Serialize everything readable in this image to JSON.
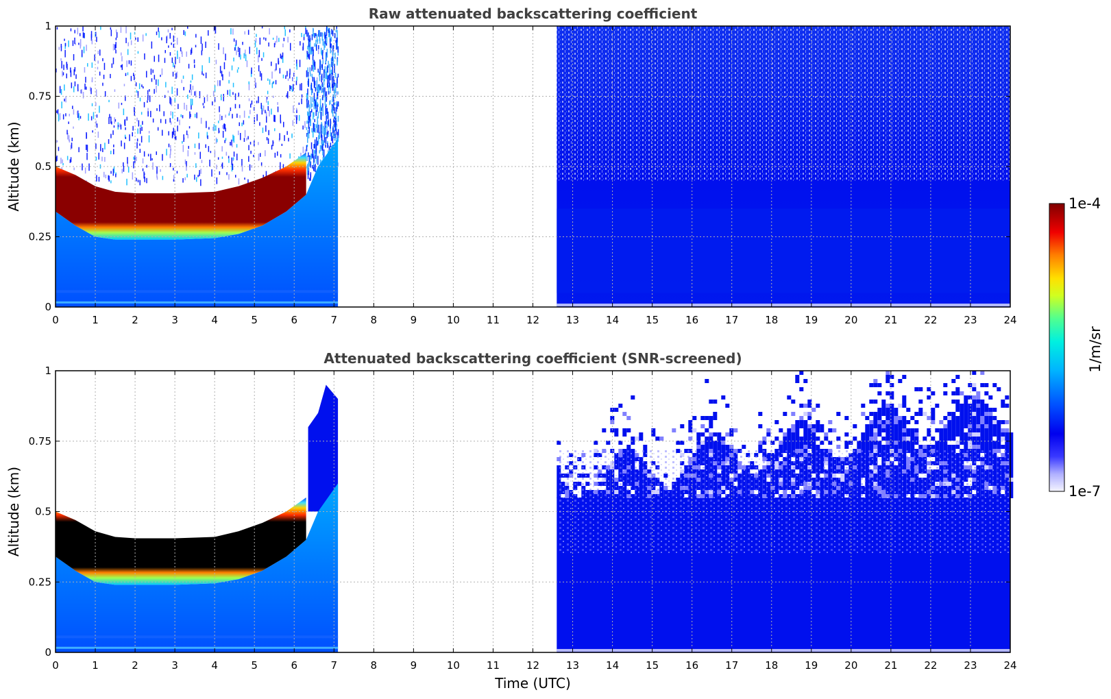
{
  "chart_data": [
    {
      "type": "heatmap",
      "title": "Raw attenuated backscattering coefficient",
      "xlabel": "",
      "ylabel": "Altitude (km)",
      "xlim": [
        0,
        24
      ],
      "ylim": [
        0,
        1
      ],
      "xticks": [
        0,
        1,
        2,
        3,
        4,
        5,
        6,
        7,
        8,
        9,
        10,
        11,
        12,
        13,
        14,
        15,
        16,
        17,
        18,
        19,
        20,
        21,
        22,
        23,
        24
      ],
      "yticks": [
        0,
        0.25,
        0.5,
        0.75,
        1
      ],
      "ytick_labels": [
        "0",
        "0.25",
        "0.5",
        "0.75",
        "1"
      ],
      "grid": true,
      "data_segments": [
        {
          "x_start": 0,
          "x_end": 7.1,
          "description_values": {
            "layer_base_km_start": 0.33,
            "layer_base_km_min": 0.24,
            "layer_top_km_min": 0.4,
            "layer_top_km_end": 0.55
          }
        },
        {
          "x_start": 12.6,
          "x_end": 24
        }
      ],
      "missing_data": [
        7.1,
        12.6
      ]
    },
    {
      "type": "heatmap",
      "title": "Attenuated backscattering coefficient (SNR-screened)",
      "xlabel": "Time (UTC)",
      "ylabel": "Altitude (km)",
      "xlim": [
        0,
        24
      ],
      "ylim": [
        0,
        1
      ],
      "xticks": [
        0,
        1,
        2,
        3,
        4,
        5,
        6,
        7,
        8,
        9,
        10,
        11,
        12,
        13,
        14,
        15,
        16,
        17,
        18,
        19,
        20,
        21,
        22,
        23,
        24
      ],
      "yticks": [
        0,
        0.25,
        0.5,
        0.75,
        1
      ],
      "ytick_labels": [
        "0",
        "0.25",
        "0.5",
        "0.75",
        "1"
      ],
      "grid": true,
      "data_segments": [
        {
          "x_start": 0,
          "x_end": 7.1
        },
        {
          "x_start": 12.6,
          "x_end": 24
        }
      ],
      "missing_data": [
        7.1,
        12.6
      ]
    }
  ],
  "colorbar": {
    "label": "1/m/sr",
    "max_label": "1e-4",
    "min_label": "1e-7",
    "scale": "log",
    "range": [
      1e-07,
      0.0001
    ],
    "colormap": [
      "#f2f2ff",
      "#c8c8ff",
      "#8080ff",
      "#0000ee",
      "#0032ff",
      "#0078ff",
      "#00c0ff",
      "#00f0e0",
      "#40ff90",
      "#c0ff30",
      "#ffff00",
      "#ffb000",
      "#ff5000",
      "#e00000",
      "#800000"
    ]
  }
}
